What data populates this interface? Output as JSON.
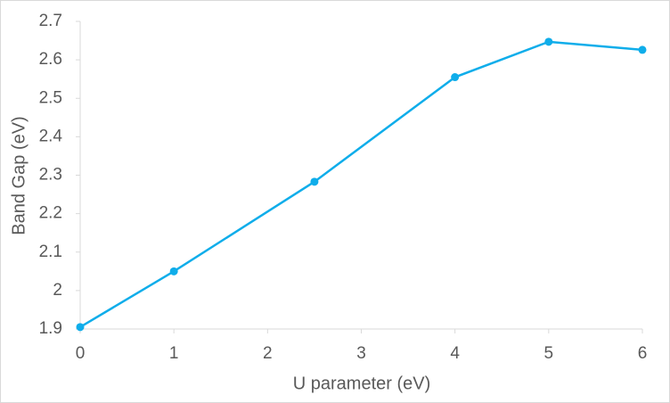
{
  "chart_data": {
    "type": "line",
    "x_label": "U parameter (eV)",
    "y_label": "Band Gap (eV)",
    "x": [
      0,
      1,
      2.5,
      4,
      5,
      6
    ],
    "series": [
      {
        "color": "#0fadea",
        "values": [
          1.905,
          2.05,
          2.283,
          2.555,
          2.647,
          2.626
        ]
      }
    ],
    "xlim": [
      0,
      6
    ],
    "xticks": [
      0,
      1,
      2,
      3,
      4,
      5,
      6
    ],
    "ylim": [
      1.9,
      2.7
    ],
    "yticks": [
      1.9,
      2,
      2.1,
      2.2,
      2.3,
      2.4,
      2.5,
      2.6,
      2.7
    ],
    "grid": false
  }
}
